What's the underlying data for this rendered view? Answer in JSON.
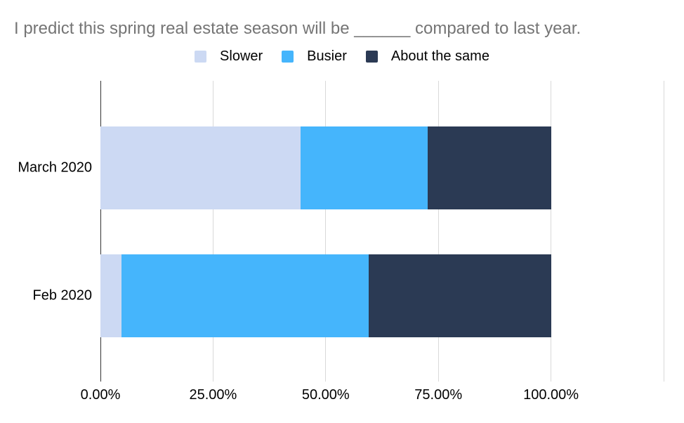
{
  "chart_data": {
    "type": "bar",
    "orientation": "horizontal",
    "stacked": true,
    "title": "I predict this spring real estate season will be ______ compared to last year.",
    "categories": [
      "March 2020",
      "Feb 2020"
    ],
    "series": [
      {
        "name": "Slower",
        "color": "#ccd9f3",
        "values": [
          44.4,
          4.7
        ]
      },
      {
        "name": "Busier",
        "color": "#45b5fc",
        "values": [
          28.2,
          54.8
        ]
      },
      {
        "name": "About the same",
        "color": "#2b3a54",
        "values": [
          27.4,
          40.5
        ]
      }
    ],
    "x_ticks": [
      "0.00%",
      "25.00%",
      "50.00%",
      "75.00%",
      "100.00%"
    ],
    "x_tick_values": [
      0,
      25,
      50,
      75,
      100
    ],
    "xlim": [
      0,
      125
    ],
    "grid": true,
    "legend_position": "top",
    "colors": {
      "title_text": "#757575",
      "axis_line": "#333333",
      "gridline": "#d9d9d9",
      "tick_label": "#000000"
    }
  }
}
